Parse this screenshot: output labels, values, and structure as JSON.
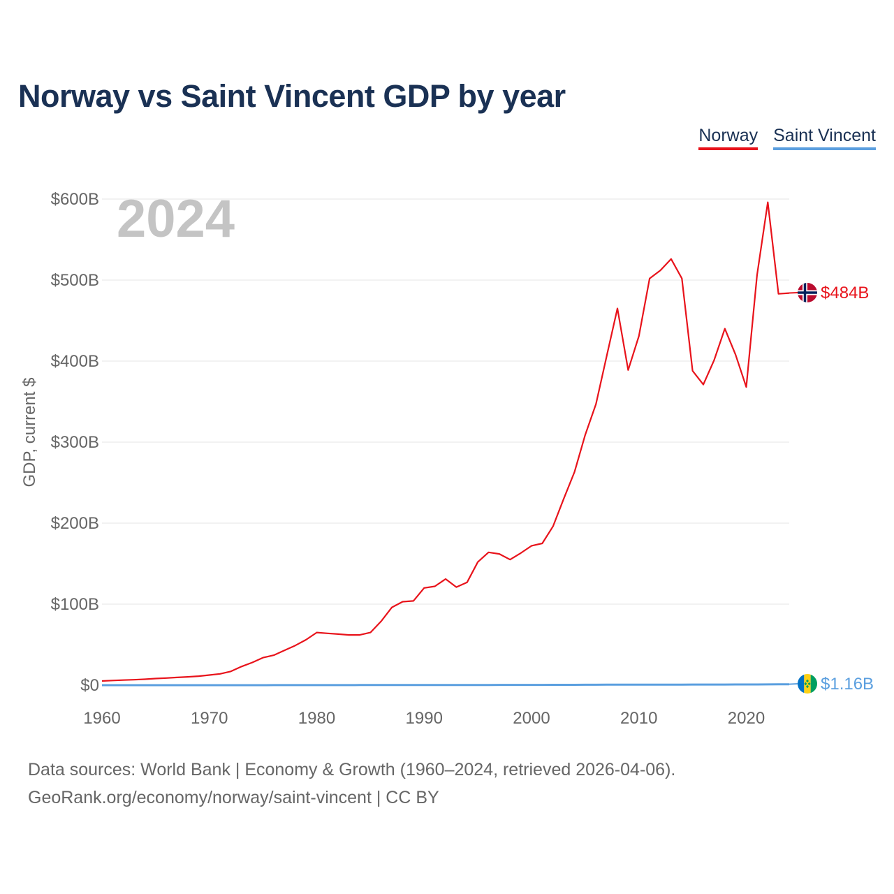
{
  "title": "Norway vs Saint Vincent GDP by year",
  "legend": {
    "norway": "Norway",
    "saint_vincent": "Saint Vincent"
  },
  "colors": {
    "norway": "#e8131b",
    "saint_vincent": "#5b9fdf",
    "title": "#1a3154",
    "year": "#c4c4c4"
  },
  "footer": {
    "line1": "Data sources: World Bank | Economy & Growth (1960–2024, retrieved 2026-04-06).",
    "line2": "GeoRank.org/economy/norway/saint-vincent | CC BY"
  },
  "chart_data": {
    "type": "line",
    "title": "Norway vs Saint Vincent GDP by year",
    "ylabel": "GDP, current $",
    "xlabel": "",
    "year_label": "2024",
    "xlim": [
      1960,
      2024
    ],
    "ylim": [
      0,
      600
    ],
    "unit": "billion USD",
    "x_ticks": [
      1960,
      1970,
      1980,
      1990,
      2000,
      2010,
      2020
    ],
    "y_ticks": [
      {
        "value": 0,
        "label": "$0"
      },
      {
        "value": 100,
        "label": "$100B"
      },
      {
        "value": 200,
        "label": "$200B"
      },
      {
        "value": 300,
        "label": "$300B"
      },
      {
        "value": 400,
        "label": "$400B"
      },
      {
        "value": 500,
        "label": "$500B"
      },
      {
        "value": 600,
        "label": "$600B"
      }
    ],
    "grid": true,
    "x": [
      1960,
      1961,
      1962,
      1963,
      1964,
      1965,
      1966,
      1967,
      1968,
      1969,
      1970,
      1971,
      1972,
      1973,
      1974,
      1975,
      1976,
      1977,
      1978,
      1979,
      1980,
      1981,
      1982,
      1983,
      1984,
      1985,
      1986,
      1987,
      1988,
      1989,
      1990,
      1991,
      1992,
      1993,
      1994,
      1995,
      1996,
      1997,
      1998,
      1999,
      2000,
      2001,
      2002,
      2003,
      2004,
      2005,
      2006,
      2007,
      2008,
      2009,
      2010,
      2011,
      2012,
      2013,
      2014,
      2015,
      2016,
      2017,
      2018,
      2019,
      2020,
      2021,
      2022,
      2023,
      2024
    ],
    "series": [
      {
        "name": "Norway",
        "color": "#e8131b",
        "end_label": "$484B",
        "values": [
          5.2,
          5.8,
          6.3,
          6.7,
          7.3,
          8.2,
          8.8,
          9.6,
          10.3,
          11.1,
          12.5,
          14,
          17,
          23,
          28,
          34,
          37,
          43,
          49,
          56,
          65,
          64,
          63,
          62,
          62,
          65,
          79,
          96,
          103,
          104,
          120,
          122,
          131,
          121,
          127,
          152,
          164,
          162,
          155,
          163,
          172,
          175,
          196,
          230,
          263,
          309,
          347,
          406,
          465,
          389,
          431,
          502,
          512,
          526,
          502,
          388,
          371,
          401,
          440,
          408,
          368,
          506,
          596,
          483,
          484
        ]
      },
      {
        "name": "Saint Vincent",
        "color": "#5b9fdf",
        "end_label": "$1.16B",
        "values": [
          0.02,
          0.02,
          0.02,
          0.02,
          0.02,
          0.02,
          0.02,
          0.02,
          0.02,
          0.02,
          0.02,
          0.02,
          0.03,
          0.03,
          0.03,
          0.04,
          0.05,
          0.05,
          0.06,
          0.08,
          0.09,
          0.1,
          0.11,
          0.12,
          0.13,
          0.14,
          0.15,
          0.17,
          0.19,
          0.2,
          0.24,
          0.25,
          0.27,
          0.28,
          0.29,
          0.3,
          0.3,
          0.31,
          0.33,
          0.35,
          0.36,
          0.37,
          0.39,
          0.41,
          0.45,
          0.48,
          0.53,
          0.58,
          0.68,
          0.68,
          0.68,
          0.68,
          0.69,
          0.72,
          0.73,
          0.76,
          0.77,
          0.79,
          0.81,
          0.83,
          0.85,
          0.88,
          0.95,
          1.08,
          1.16
        ]
      }
    ]
  }
}
